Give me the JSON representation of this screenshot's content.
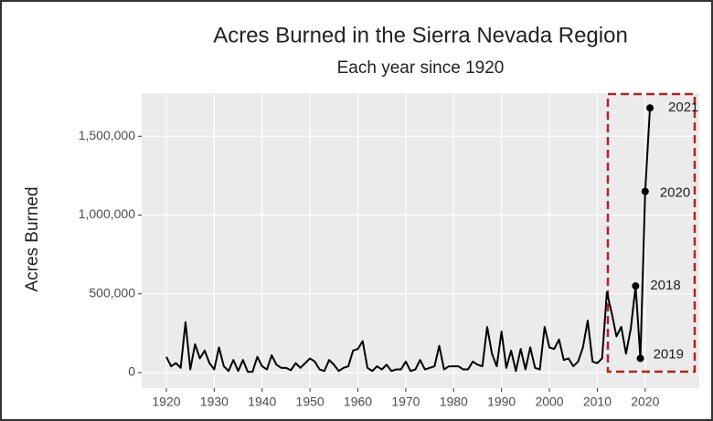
{
  "chart_data": {
    "type": "line",
    "title": "Acres Burned in the Sierra Nevada Region",
    "subtitle": "Each year since 1920",
    "y_label": "Acres Burned",
    "x": [
      1920,
      1921,
      1922,
      1923,
      1924,
      1925,
      1926,
      1927,
      1928,
      1929,
      1930,
      1931,
      1932,
      1933,
      1934,
      1935,
      1936,
      1937,
      1938,
      1939,
      1940,
      1941,
      1942,
      1943,
      1944,
      1945,
      1946,
      1947,
      1948,
      1949,
      1950,
      1951,
      1952,
      1953,
      1954,
      1955,
      1956,
      1957,
      1958,
      1959,
      1960,
      1961,
      1962,
      1963,
      1964,
      1965,
      1966,
      1967,
      1968,
      1969,
      1970,
      1971,
      1972,
      1973,
      1974,
      1975,
      1976,
      1977,
      1978,
      1979,
      1980,
      1981,
      1982,
      1983,
      1984,
      1985,
      1986,
      1987,
      1988,
      1989,
      1990,
      1991,
      1992,
      1993,
      1994,
      1995,
      1996,
      1997,
      1998,
      1999,
      2000,
      2001,
      2002,
      2003,
      2004,
      2005,
      2006,
      2007,
      2008,
      2009,
      2010,
      2011,
      2012,
      2013,
      2014,
      2015,
      2016,
      2017,
      2018,
      2019,
      2020,
      2021
    ],
    "series": [
      {
        "color": "#000000",
        "values": [
          100000,
          40000,
          60000,
          30000,
          320000,
          20000,
          180000,
          90000,
          140000,
          60000,
          20000,
          160000,
          40000,
          10000,
          80000,
          10000,
          80000,
          5000,
          5000,
          100000,
          40000,
          20000,
          110000,
          50000,
          30000,
          30000,
          15000,
          60000,
          30000,
          60000,
          90000,
          70000,
          20000,
          10000,
          80000,
          50000,
          10000,
          30000,
          40000,
          140000,
          150000,
          200000,
          30000,
          10000,
          40000,
          20000,
          50000,
          10000,
          20000,
          20000,
          70000,
          10000,
          20000,
          80000,
          20000,
          30000,
          40000,
          170000,
          20000,
          40000,
          40000,
          40000,
          20000,
          20000,
          70000,
          50000,
          40000,
          290000,
          120000,
          40000,
          260000,
          30000,
          140000,
          10000,
          150000,
          20000,
          160000,
          30000,
          20000,
          290000,
          160000,
          150000,
          210000,
          80000,
          90000,
          40000,
          70000,
          160000,
          330000,
          70000,
          60000,
          90000,
          510000,
          380000,
          230000,
          290000,
          120000,
          280000,
          550000,
          90000,
          1150000,
          1680000
        ]
      }
    ],
    "labeled_points": [
      2018,
      2019,
      2020,
      2021
    ],
    "xlim": [
      1914.85,
      2031.3
    ],
    "ylim": [
      -98600,
      1774000
    ],
    "xticks": [
      1920,
      1930,
      1940,
      1950,
      1960,
      1970,
      1980,
      1990,
      2000,
      2010,
      2020
    ],
    "yticks": [
      0,
      {
        "value": 500000,
        "label": "500,000"
      },
      {
        "value": 1000000,
        "label": "1,000,000"
      },
      {
        "value": 1500000,
        "label": "1,500,000"
      }
    ],
    "grid": true
  }
}
